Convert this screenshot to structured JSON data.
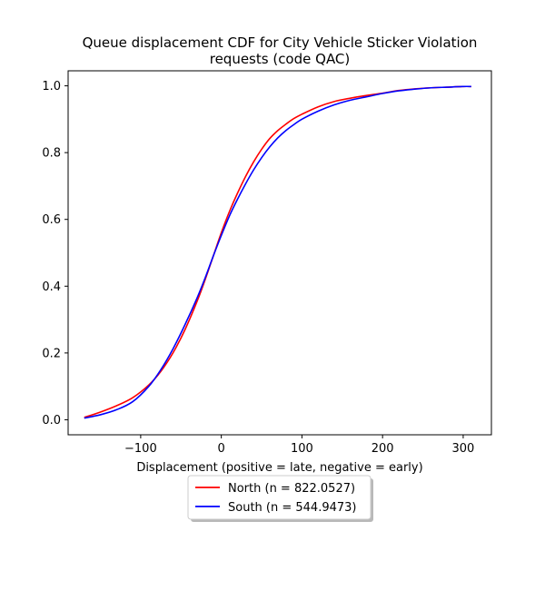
{
  "chart_data": {
    "type": "line",
    "title_line1": "Queue displacement CDF for City Vehicle Sticker Violation",
    "title_line2": "requests (code QAC)",
    "xlabel": "Displacement (positive = late, negative = early)",
    "ylabel": "",
    "xlim": [
      -190,
      335
    ],
    "ylim": [
      -0.045,
      1.045
    ],
    "xticks": [
      -100,
      0,
      100,
      200,
      300
    ],
    "yticks": [
      0.0,
      0.2,
      0.4,
      0.6,
      0.8,
      1.0
    ],
    "xtick_labels": [
      "−100",
      "0",
      "100",
      "200",
      "300"
    ],
    "ytick_labels": [
      "0.0",
      "0.2",
      "0.4",
      "0.6",
      "0.8",
      "1.0"
    ],
    "grid": false,
    "legend_position": "below-center",
    "series": [
      {
        "name": "North (n = 822.0527)",
        "color": "#ff0000",
        "x": [
          -170,
          -150,
          -130,
          -110,
          -90,
          -75,
          -60,
          -45,
          -30,
          -20,
          -10,
          0,
          10,
          20,
          30,
          40,
          50,
          60,
          70,
          80,
          90,
          100,
          120,
          140,
          160,
          180,
          200,
          220,
          240,
          260,
          280,
          300,
          310
        ],
        "y": [
          0.007,
          0.023,
          0.042,
          0.066,
          0.104,
          0.145,
          0.2,
          0.27,
          0.355,
          0.42,
          0.49,
          0.56,
          0.623,
          0.678,
          0.728,
          0.772,
          0.81,
          0.842,
          0.866,
          0.885,
          0.902,
          0.915,
          0.937,
          0.953,
          0.963,
          0.971,
          0.978,
          0.986,
          0.991,
          0.994,
          0.996,
          0.998,
          0.998
        ]
      },
      {
        "name": "South (n = 544.9473)",
        "color": "#0000ff",
        "x": [
          -170,
          -150,
          -130,
          -110,
          -90,
          -75,
          -60,
          -45,
          -30,
          -20,
          -10,
          0,
          10,
          20,
          30,
          40,
          50,
          60,
          70,
          80,
          90,
          100,
          120,
          140,
          160,
          180,
          200,
          220,
          240,
          260,
          280,
          300,
          310
        ],
        "y": [
          0.005,
          0.015,
          0.03,
          0.054,
          0.1,
          0.15,
          0.212,
          0.285,
          0.365,
          0.425,
          0.49,
          0.552,
          0.61,
          0.66,
          0.706,
          0.748,
          0.785,
          0.817,
          0.844,
          0.866,
          0.884,
          0.9,
          0.924,
          0.943,
          0.957,
          0.967,
          0.977,
          0.985,
          0.99,
          0.994,
          0.996,
          0.998,
          0.998
        ]
      }
    ]
  }
}
